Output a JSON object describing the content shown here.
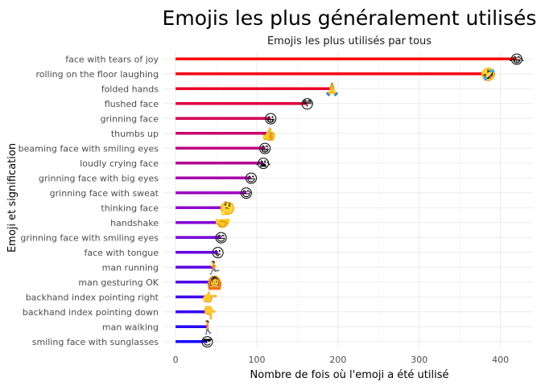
{
  "chart_data": {
    "type": "bar",
    "title": "Emojis les plus généralement utilisés",
    "subtitle": "Emojis les plus utilisés par tous",
    "xlabel": "Nombre de fois où l'emoji a été utilisé",
    "ylabel": "Emoji et signification",
    "xlim": [
      -15,
      440
    ],
    "x_ticks": [
      "0",
      "100",
      "200",
      "300",
      "400"
    ],
    "grid": true,
    "colors": {
      "start": "#ff0000",
      "mid": "#9900cc",
      "end": "#1a00ff"
    },
    "categories": [
      "face with tears of joy",
      "rolling on the floor laughing",
      "folded hands",
      "flushed face",
      "grinning face",
      "thumbs up",
      "beaming face with smiling eyes",
      "loudly crying face",
      "grinning face with big eyes",
      "grinning face with sweat",
      "thinking face",
      "handshake",
      "grinning face with smiling eyes",
      "face with tongue",
      "man running",
      "man gesturing OK",
      "backhand index pointing right",
      "backhand index pointing down",
      "man walking",
      "smiling face with sunglasses"
    ],
    "values": [
      420,
      385,
      193,
      162,
      117,
      115,
      110,
      108,
      93,
      87,
      64,
      58,
      56,
      52,
      47,
      48,
      42,
      42,
      40,
      39
    ],
    "emojis": [
      "😂",
      "🤣",
      "🙏",
      "😳",
      "😀",
      "👍",
      "😁",
      "😭",
      "😃",
      "😅",
      "🤔",
      "🤝",
      "😄",
      "😛",
      "🏃",
      "🙆",
      "👉",
      "👇",
      "🚶",
      "😎"
    ]
  }
}
